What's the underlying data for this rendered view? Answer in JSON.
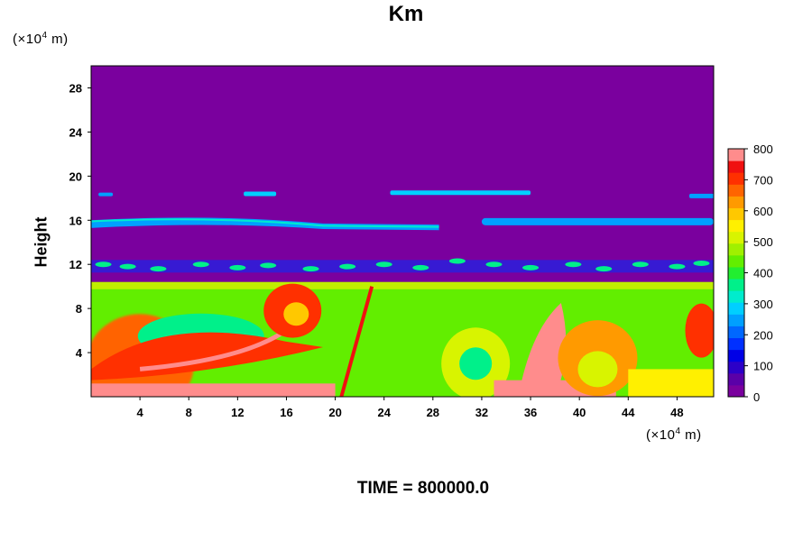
{
  "chart_data": {
    "type": "heatmap",
    "title": "Km",
    "ylabel": "Height",
    "xlabel": "",
    "x_unit_prefix": "(×10",
    "x_unit_exp": "4",
    "x_unit_suffix": " m)",
    "y_unit_prefix": "(×10",
    "y_unit_exp": "4",
    "y_unit_suffix": " m)",
    "xlim": [
      0,
      51
    ],
    "ylim": [
      0,
      30
    ],
    "xticks": [
      4,
      8,
      12,
      16,
      20,
      24,
      28,
      32,
      36,
      40,
      44,
      48
    ],
    "yticks": [
      4,
      8,
      12,
      16,
      20,
      24,
      28
    ],
    "colorbar": {
      "min": 0,
      "max": 800,
      "ticks": [
        0,
        100,
        200,
        300,
        400,
        500,
        600,
        700,
        800
      ],
      "colors": [
        "#7a009e",
        "#5a00a8",
        "#2c00c8",
        "#0000e6",
        "#0030ff",
        "#0068ff",
        "#00a0ff",
        "#00cfff",
        "#00eccd",
        "#00f08a",
        "#22ee30",
        "#62ee00",
        "#a0f000",
        "#d8f400",
        "#fff000",
        "#ffc800",
        "#ff9a00",
        "#ff6400",
        "#ff3000",
        "#f01010",
        "#ff8c8c"
      ]
    },
    "background_value": 0
  },
  "footer": {
    "time_label": "TIME = 800000.0"
  }
}
